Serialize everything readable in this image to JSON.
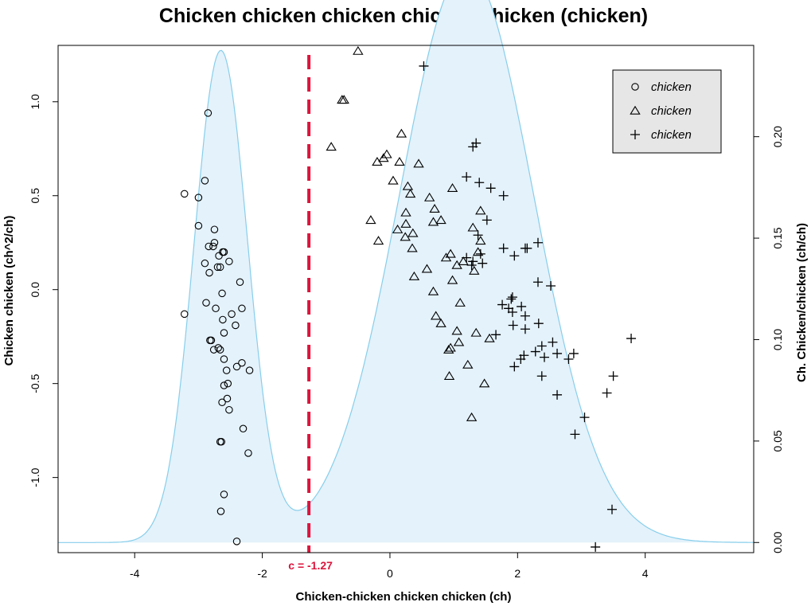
{
  "chart_data": {
    "type": "scatter",
    "title": "Chicken chicken chicken chicken/chicken (chicken)",
    "xlabel": "Chicken-chicken chicken chicken (ch)",
    "ylabel": "Chicken chicken (ch^2/ch)",
    "y2label": "Ch. Chicken/chicken (ch/ch)",
    "xlim": [
      -5.2,
      5.7
    ],
    "ylim": [
      -1.4,
      1.3
    ],
    "y2lim": [
      -0.005,
      0.245
    ],
    "xticks": [
      -4,
      -2,
      0,
      2,
      4
    ],
    "yticks": [
      -1.0,
      -0.5,
      0.0,
      0.5,
      1.0
    ],
    "ytick_labels": [
      "-1.0",
      "-0.5",
      "0.0",
      "0.5",
      "1.0"
    ],
    "y2ticks": [
      0.0,
      0.05,
      0.1,
      0.15,
      0.2
    ],
    "y2tick_labels": [
      "0.00",
      "0.05",
      "0.10",
      "0.15",
      "0.20"
    ],
    "grid": false,
    "legend_position": "top-right",
    "colors": {
      "density_fill": "#e4f2fb",
      "density_line": "#87ceeb",
      "threshold": "#dc143c",
      "y2label": "#87ceeb",
      "legend_bg": "#e6e6e6"
    },
    "threshold": {
      "x": -1.27,
      "label": "c = -1.27"
    },
    "density": {
      "description_free": true,
      "components": [
        {
          "mean": -2.65,
          "sd": 0.42,
          "weight": 0.255
        },
        {
          "mean": 1.2,
          "sd": 1.05,
          "weight": 0.745
        }
      ]
    },
    "series": [
      {
        "name": "chicken",
        "marker": "circle",
        "points": [
          [
            -2.85,
            0.94
          ],
          [
            -3.22,
            0.51
          ],
          [
            -2.9,
            0.58
          ],
          [
            -3.0,
            0.49
          ],
          [
            -3.0,
            0.34
          ],
          [
            -2.75,
            0.32
          ],
          [
            -2.75,
            0.25
          ],
          [
            -2.84,
            0.23
          ],
          [
            -2.77,
            0.23
          ],
          [
            -2.62,
            0.2
          ],
          [
            -2.6,
            0.2
          ],
          [
            -2.68,
            0.18
          ],
          [
            -2.52,
            0.15
          ],
          [
            -2.9,
            0.14
          ],
          [
            -2.7,
            0.12
          ],
          [
            -2.66,
            0.12
          ],
          [
            -2.83,
            0.09
          ],
          [
            -2.35,
            0.04
          ],
          [
            -2.63,
            -0.02
          ],
          [
            -2.88,
            -0.07
          ],
          [
            -2.73,
            -0.1
          ],
          [
            -2.32,
            -0.1
          ],
          [
            -2.48,
            -0.13
          ],
          [
            -3.22,
            -0.13
          ],
          [
            -2.62,
            -0.16
          ],
          [
            -2.42,
            -0.19
          ],
          [
            -2.6,
            -0.23
          ],
          [
            -2.8,
            -0.27
          ],
          [
            -2.82,
            -0.27
          ],
          [
            -2.69,
            -0.31
          ],
          [
            -2.66,
            -0.32
          ],
          [
            -2.76,
            -0.32
          ],
          [
            -2.6,
            -0.37
          ],
          [
            -2.32,
            -0.39
          ],
          [
            -2.4,
            -0.41
          ],
          [
            -2.56,
            -0.43
          ],
          [
            -2.2,
            -0.43
          ],
          [
            -2.54,
            -0.5
          ],
          [
            -2.6,
            -0.51
          ],
          [
            -2.55,
            -0.58
          ],
          [
            -2.63,
            -0.6
          ],
          [
            -2.52,
            -0.64
          ],
          [
            -2.3,
            -0.74
          ],
          [
            -2.64,
            -0.81
          ],
          [
            -2.66,
            -0.81
          ],
          [
            -2.22,
            -0.87
          ],
          [
            -2.6,
            -1.09
          ],
          [
            -2.65,
            -1.18
          ],
          [
            -2.4,
            -1.34
          ]
        ]
      },
      {
        "name": "chicken",
        "marker": "triangle",
        "points": [
          [
            -0.5,
            1.27
          ],
          [
            -0.75,
            1.01
          ],
          [
            -0.72,
            1.01
          ],
          [
            -0.92,
            0.76
          ],
          [
            0.18,
            0.83
          ],
          [
            -0.05,
            0.72
          ],
          [
            -0.1,
            0.7
          ],
          [
            0.15,
            0.68
          ],
          [
            -0.2,
            0.68
          ],
          [
            0.45,
            0.67
          ],
          [
            0.05,
            0.58
          ],
          [
            0.28,
            0.55
          ],
          [
            0.32,
            0.51
          ],
          [
            0.62,
            0.49
          ],
          [
            0.98,
            0.54
          ],
          [
            -0.3,
            0.37
          ],
          [
            0.25,
            0.41
          ],
          [
            0.7,
            0.43
          ],
          [
            1.42,
            0.42
          ],
          [
            0.25,
            0.35
          ],
          [
            0.68,
            0.36
          ],
          [
            0.8,
            0.37
          ],
          [
            1.3,
            0.33
          ],
          [
            0.12,
            0.32
          ],
          [
            0.36,
            0.3
          ],
          [
            0.24,
            0.28
          ],
          [
            -0.18,
            0.26
          ],
          [
            1.42,
            0.26
          ],
          [
            0.35,
            0.22
          ],
          [
            0.95,
            0.19
          ],
          [
            1.38,
            0.2
          ],
          [
            0.88,
            0.17
          ],
          [
            1.15,
            0.15
          ],
          [
            1.05,
            0.13
          ],
          [
            0.58,
            0.11
          ],
          [
            1.32,
            0.1
          ],
          [
            0.38,
            0.07
          ],
          [
            0.98,
            0.05
          ],
          [
            0.68,
            -0.01
          ],
          [
            1.1,
            -0.07
          ],
          [
            0.72,
            -0.14
          ],
          [
            0.8,
            -0.18
          ],
          [
            1.05,
            -0.22
          ],
          [
            1.35,
            -0.23
          ],
          [
            1.56,
            -0.26
          ],
          [
            1.08,
            -0.28
          ],
          [
            0.95,
            -0.31
          ],
          [
            0.92,
            -0.32
          ],
          [
            1.22,
            -0.4
          ],
          [
            0.93,
            -0.46
          ],
          [
            1.48,
            -0.5
          ],
          [
            1.28,
            -0.68
          ]
        ]
      },
      {
        "name": "chicken",
        "marker": "plus",
        "points": [
          [
            0.53,
            1.19
          ],
          [
            1.35,
            0.78
          ],
          [
            1.3,
            0.76
          ],
          [
            1.2,
            0.6
          ],
          [
            1.4,
            0.57
          ],
          [
            1.58,
            0.54
          ],
          [
            1.78,
            0.5
          ],
          [
            1.52,
            0.37
          ],
          [
            1.38,
            0.29
          ],
          [
            1.78,
            0.22
          ],
          [
            2.12,
            0.22
          ],
          [
            2.15,
            0.22
          ],
          [
            2.32,
            0.25
          ],
          [
            1.42,
            0.19
          ],
          [
            1.95,
            0.18
          ],
          [
            1.2,
            0.17
          ],
          [
            1.3,
            0.15
          ],
          [
            1.28,
            0.13
          ],
          [
            1.45,
            0.14
          ],
          [
            2.32,
            0.04
          ],
          [
            2.52,
            0.02
          ],
          [
            1.92,
            -0.04
          ],
          [
            1.9,
            -0.05
          ],
          [
            1.76,
            -0.08
          ],
          [
            1.86,
            -0.1
          ],
          [
            2.06,
            -0.09
          ],
          [
            1.92,
            -0.12
          ],
          [
            2.12,
            -0.14
          ],
          [
            2.33,
            -0.18
          ],
          [
            2.12,
            -0.21
          ],
          [
            1.93,
            -0.19
          ],
          [
            1.66,
            -0.24
          ],
          [
            2.55,
            -0.28
          ],
          [
            2.38,
            -0.3
          ],
          [
            2.28,
            -0.33
          ],
          [
            2.1,
            -0.35
          ],
          [
            2.42,
            -0.36
          ],
          [
            2.62,
            -0.34
          ],
          [
            2.88,
            -0.34
          ],
          [
            2.8,
            -0.37
          ],
          [
            2.05,
            -0.37
          ],
          [
            1.95,
            -0.41
          ],
          [
            3.78,
            -0.26
          ],
          [
            3.5,
            -0.46
          ],
          [
            2.38,
            -0.46
          ],
          [
            3.4,
            -0.55
          ],
          [
            2.62,
            -0.56
          ],
          [
            3.05,
            -0.68
          ],
          [
            2.9,
            -0.77
          ],
          [
            3.48,
            -1.17
          ],
          [
            3.22,
            -1.37
          ]
        ]
      }
    ]
  }
}
